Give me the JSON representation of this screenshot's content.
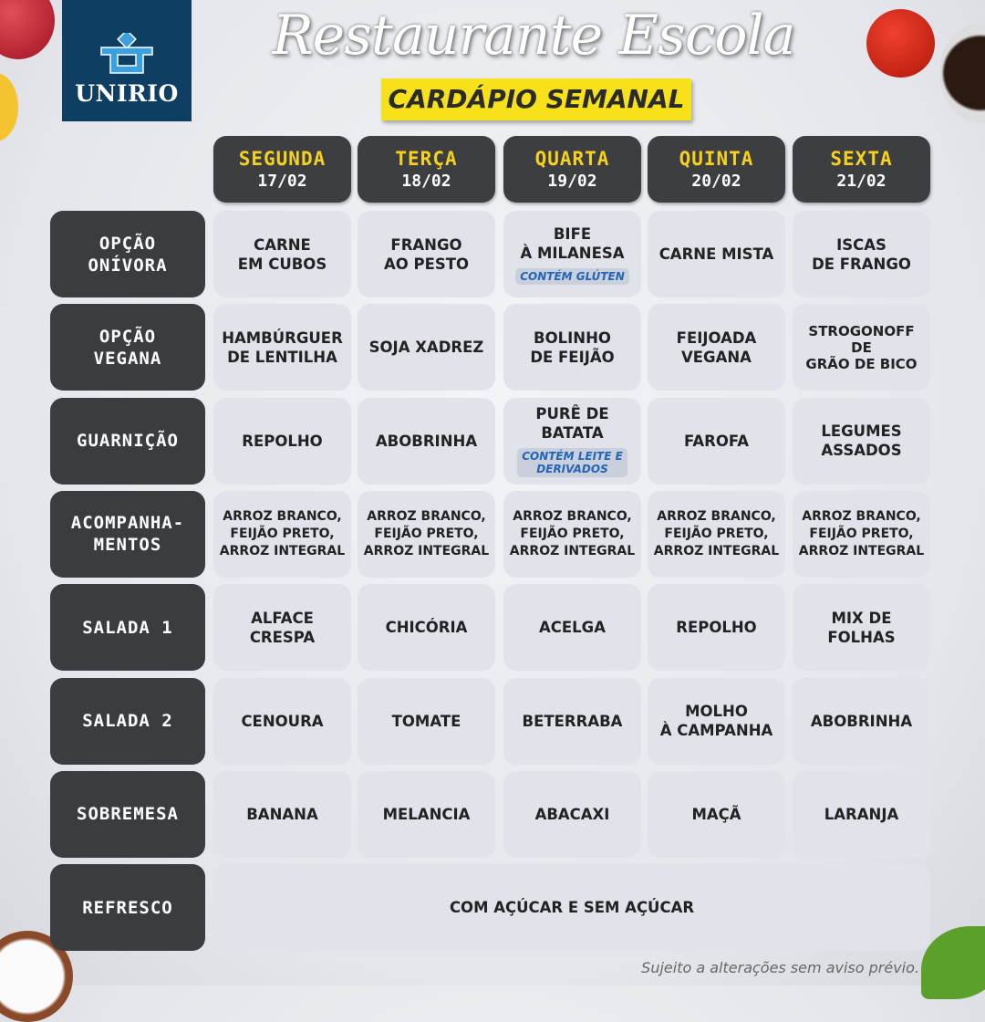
{
  "logo": {
    "text": "UNIRIO"
  },
  "title": "Restaurante Escola",
  "subtitle": "CARDÁPIO SEMANAL",
  "days": [
    {
      "name": "SEGUNDA",
      "date": "17/02"
    },
    {
      "name": "TERÇA",
      "date": "18/02"
    },
    {
      "name": "QUARTA",
      "date": "19/02"
    },
    {
      "name": "QUINTA",
      "date": "20/02"
    },
    {
      "name": "SEXTA",
      "date": "21/02"
    }
  ],
  "rows": [
    {
      "label": "OPÇÃO\nONÍVORA",
      "items": [
        {
          "text": "CARNE\nEM CUBOS"
        },
        {
          "text": "FRANGO\nAO PESTO"
        },
        {
          "text": "BIFE\nÀ MILANESA",
          "tag": "CONTÉM GLÚTEN"
        },
        {
          "text": "CARNE MISTA"
        },
        {
          "text": "ISCAS\nDE FRANGO"
        }
      ]
    },
    {
      "label": "OPÇÃO\nVEGANA",
      "items": [
        {
          "text": "HAMBÚRGUER\nDE LENTILHA"
        },
        {
          "text": "SOJA XADREZ"
        },
        {
          "text": "BOLINHO\nDE FEIJÃO"
        },
        {
          "text": "FEIJOADA\nVEGANA"
        },
        {
          "text": "STROGONOFF\nDE\nGRÃO DE BICO"
        }
      ]
    },
    {
      "label": "GUARNIÇÃO",
      "items": [
        {
          "text": "REPOLHO"
        },
        {
          "text": "ABOBRINHA"
        },
        {
          "text": "PURÊ DE BATATA",
          "tag": "CONTÉM LEITE E\nDERIVADOS"
        },
        {
          "text": "FAROFA"
        },
        {
          "text": "LEGUMES\nASSADOS"
        }
      ]
    },
    {
      "label": "ACOMPANHA-\nMENTOS",
      "small": true,
      "items": [
        {
          "text": "ARROZ BRANCO,\nFEIJÃO PRETO,\nARROZ INTEGRAL"
        },
        {
          "text": "ARROZ BRANCO,\nFEIJÃO PRETO,\nARROZ INTEGRAL"
        },
        {
          "text": "ARROZ BRANCO,\nFEIJÃO PRETO,\nARROZ INTEGRAL"
        },
        {
          "text": "ARROZ BRANCO,\nFEIJÃO PRETO,\nARROZ INTEGRAL"
        },
        {
          "text": "ARROZ BRANCO,\nFEIJÃO PRETO,\nARROZ INTEGRAL"
        }
      ]
    },
    {
      "label": "SALADA 1",
      "items": [
        {
          "text": "ALFACE\nCRESPA"
        },
        {
          "text": "CHICÓRIA"
        },
        {
          "text": "ACELGA"
        },
        {
          "text": "REPOLHO"
        },
        {
          "text": "MIX DE FOLHAS"
        }
      ]
    },
    {
      "label": "SALADA 2",
      "items": [
        {
          "text": "CENOURA"
        },
        {
          "text": "TOMATE"
        },
        {
          "text": "BETERRABA"
        },
        {
          "text": "MOLHO\nÀ CAMPANHA"
        },
        {
          "text": "ABOBRINHA"
        }
      ]
    },
    {
      "label": "SOBREMESA",
      "items": [
        {
          "text": "BANANA"
        },
        {
          "text": "MELANCIA"
        },
        {
          "text": "ABACAXI"
        },
        {
          "text": "MAÇÃ"
        },
        {
          "text": "LARANJA"
        }
      ]
    },
    {
      "label": "REFRESCO",
      "span": true,
      "items": [
        {
          "text": "COM AÇÚCAR E SEM AÇÚCAR"
        }
      ]
    }
  ],
  "footer_note": "Sujeito a alterações sem aviso prévio.",
  "colors": {
    "header_bg": "#3d3e42",
    "day_name": "#f7d21b",
    "cell_bg": "#e0e3ea",
    "tag_text": "#2464b8",
    "subtitle_bg": "#f7e11b",
    "logo_bg": "#0f3e63"
  }
}
